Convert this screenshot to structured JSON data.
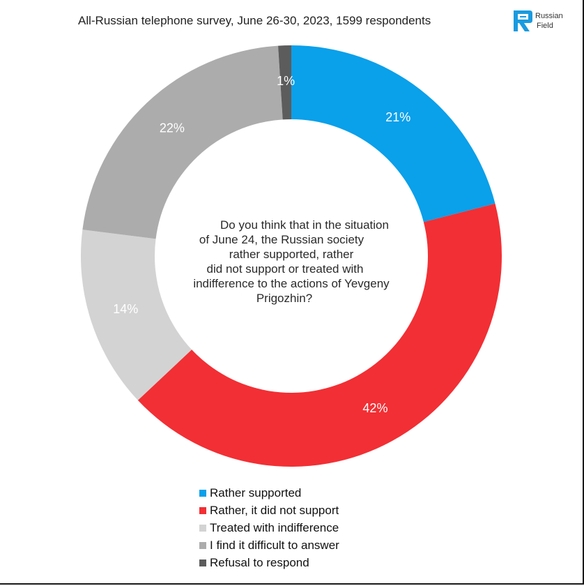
{
  "header": {
    "title": "All-Russian telephone survey, June 26-30, 2023, 1599 respondents",
    "logo": {
      "icon": "russian-field-logo-icon",
      "line1": "Russian",
      "line2": "Field",
      "color": "#1a9be0"
    }
  },
  "center_question": [
    "Do you think that in the situation",
    "of June 24, the Russian society",
    "rather supported, rather",
    "did not support or treated with",
    "indifference to the actions of Yevgeny",
    "Prigozhin?"
  ],
  "chart_data": {
    "type": "pie",
    "variant": "donut",
    "title": "All-Russian telephone survey, June 26-30, 2023, 1599 respondents",
    "center_text": "Do you think that in the situation of June 24, the Russian society rather supported, rather did not support or treated with indifference to the actions of Yevgeny Prigozhin?",
    "unit": "%",
    "slices": [
      {
        "label": "Rather supported",
        "value": 21,
        "display": "21%",
        "color": "#0aa0ea"
      },
      {
        "label": "Rather, it did not support",
        "value": 42,
        "display": "42%",
        "color": "#f22f34"
      },
      {
        "label": "Treated with indifference",
        "value": 14,
        "display": "14%",
        "color": "#d3d3d3"
      },
      {
        "label": "I find it difficult to answer",
        "value": 22,
        "display": "22%",
        "color": "#acacac"
      },
      {
        "label": "Refusal to respond",
        "value": 1,
        "display": "1%",
        "color": "#5c5c5c"
      }
    ],
    "legend_position": "bottom"
  }
}
